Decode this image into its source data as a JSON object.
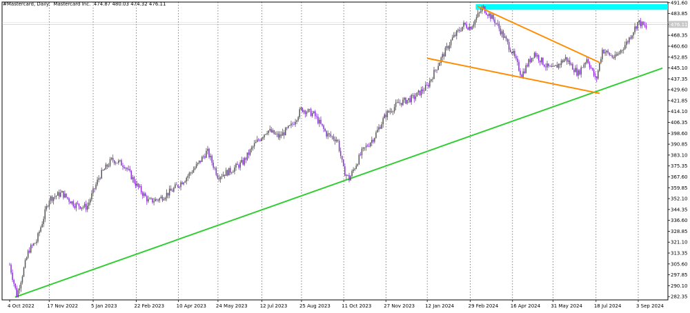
{
  "header": {
    "symbol_line": "#Mastercard, Daily:  Mastercard Inc.  474.87 480.03 474.32 476.11"
  },
  "colors": {
    "background": "#ffffff",
    "grid": "#000000",
    "bull_candle": "#555555",
    "bear_candle": "#8a2be2",
    "support_line": "#32cd32",
    "wedge_lines": "#ff8c00",
    "resistance_zone": "#00ffff",
    "price_label_bg": "#c8c8c8"
  },
  "chart_data": {
    "type": "candlestick",
    "title": "#Mastercard, Daily:  Mastercard Inc.  474.87 480.03 474.32 476.11",
    "current_price": "476.11",
    "ylim": [
      280,
      492
    ],
    "y_ticks": [
      "491.60",
      "483.85",
      "476.11",
      "468.35",
      "460.60",
      "452.85",
      "445.10",
      "437.35",
      "429.60",
      "421.85",
      "414.10",
      "406.35",
      "398.60",
      "390.85",
      "383.10",
      "375.35",
      "367.60",
      "359.85",
      "352.10",
      "344.35",
      "336.60",
      "328.85",
      "321.10",
      "313.35",
      "305.60",
      "297.85",
      "290.10",
      "282.35"
    ],
    "x_ticks": [
      "4 Oct 2022",
      "17 Nov 2022",
      "5 Jan 2023",
      "22 Feb 2023",
      "10 Apr 2023",
      "24 May 2023",
      "12 Jul 2023",
      "25 Aug 2023",
      "11 Oct 2023",
      "27 Nov 2023",
      "12 Jan 2024",
      "29 Feb 2024",
      "16 Apr 2024",
      "31 May 2024",
      "18 Jul 2024",
      "3 Sep 2024"
    ],
    "grid": "vertical-dotted",
    "price_path": [
      [
        "2022-10-04",
        305
      ],
      [
        "2022-10-12",
        283
      ],
      [
        "2022-10-25",
        315
      ],
      [
        "2022-11-03",
        322
      ],
      [
        "2022-11-17",
        352
      ],
      [
        "2022-12-01",
        356
      ],
      [
        "2022-12-15",
        348
      ],
      [
        "2022-12-29",
        346
      ],
      [
        "2023-01-12",
        368
      ],
      [
        "2023-01-26",
        380
      ],
      [
        "2023-02-09",
        376
      ],
      [
        "2023-02-22",
        362
      ],
      [
        "2023-03-08",
        350
      ],
      [
        "2023-03-20",
        352
      ],
      [
        "2023-04-03",
        358
      ],
      [
        "2023-04-17",
        366
      ],
      [
        "2023-05-01",
        376
      ],
      [
        "2023-05-12",
        386
      ],
      [
        "2023-05-24",
        368
      ],
      [
        "2023-06-07",
        372
      ],
      [
        "2023-06-21",
        378
      ],
      [
        "2023-07-03",
        390
      ],
      [
        "2023-07-18",
        401
      ],
      [
        "2023-07-31",
        396
      ],
      [
        "2023-08-14",
        404
      ],
      [
        "2023-08-25",
        416
      ],
      [
        "2023-09-08",
        412
      ],
      [
        "2023-09-22",
        398
      ],
      [
        "2023-10-04",
        394
      ],
      [
        "2023-10-11",
        372
      ],
      [
        "2023-10-17",
        366
      ],
      [
        "2023-10-31",
        385
      ],
      [
        "2023-11-14",
        396
      ],
      [
        "2023-11-27",
        412
      ],
      [
        "2023-12-11",
        420
      ],
      [
        "2023-12-28",
        424
      ],
      [
        "2024-01-12",
        432
      ],
      [
        "2024-01-26",
        450
      ],
      [
        "2024-02-09",
        466
      ],
      [
        "2024-02-22",
        476
      ],
      [
        "2024-02-29",
        474
      ],
      [
        "2024-03-14",
        488
      ],
      [
        "2024-03-28",
        478
      ],
      [
        "2024-04-16",
        456
      ],
      [
        "2024-04-26",
        440
      ],
      [
        "2024-05-10",
        456
      ],
      [
        "2024-05-24",
        446
      ],
      [
        "2024-05-31",
        444
      ],
      [
        "2024-06-14",
        452
      ],
      [
        "2024-06-28",
        441
      ],
      [
        "2024-07-08",
        452
      ],
      [
        "2024-07-18",
        436
      ],
      [
        "2024-07-25",
        458
      ],
      [
        "2024-08-08",
        452
      ],
      [
        "2024-08-22",
        464
      ],
      [
        "2024-09-03",
        478
      ],
      [
        "2024-09-13",
        473
      ]
    ]
  },
  "annotations": {
    "support_line": {
      "from": [
        "2022-10-10",
        282
      ],
      "to": [
        "2024-09-30",
        445
      ]
    },
    "wedge_upper": {
      "from": [
        "2024-03-08",
        489
      ],
      "to": [
        "2024-07-22",
        449
      ]
    },
    "wedge_lower": {
      "from": [
        "2024-01-12",
        452
      ],
      "to": [
        "2024-07-22",
        427
      ]
    },
    "resistance_zone": {
      "from_date": "2024-03-06",
      "y_from": 486.5,
      "y_to": 490.5
    }
  }
}
